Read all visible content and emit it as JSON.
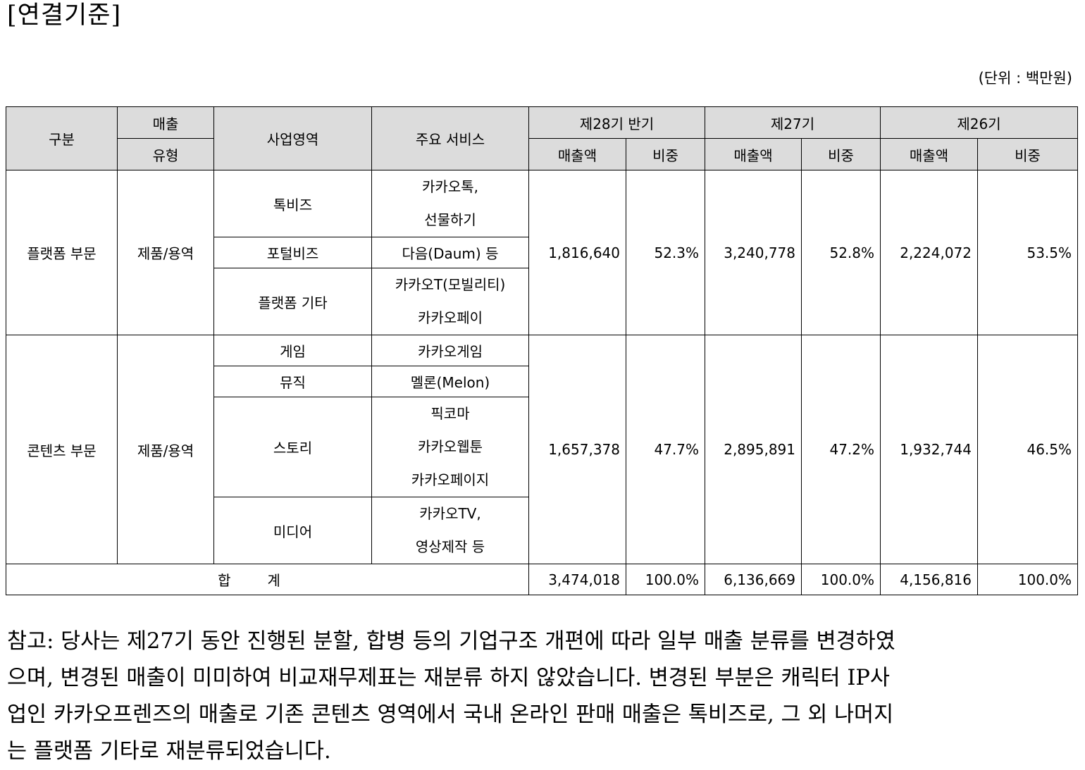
{
  "heading": "[연결기준]",
  "unit": "(단위 : 백만원)",
  "header": {
    "category": "구분",
    "sales_type_line1": "매출",
    "sales_type_line2": "유형",
    "business_area": "사업영역",
    "main_services": "주요 서비스",
    "p28": "제28기 반기",
    "p27": "제27기",
    "p26": "제26기",
    "sales": "매출액",
    "share": "비중"
  },
  "platform": {
    "category": "플랫폼 부문",
    "type": "제품/용역",
    "areas": [
      {
        "name": "톡비즈",
        "services": [
          "카카오톡,",
          "선물하기"
        ]
      },
      {
        "name": "포털비즈",
        "services": [
          "다음(Daum) 등"
        ]
      },
      {
        "name": "플랫폼 기타",
        "services": [
          "카카오T(모빌리티)",
          "카카오페이"
        ]
      }
    ],
    "p28_sales": "1,816,640",
    "p28_share": "52.3%",
    "p27_sales": "3,240,778",
    "p27_share": "52.8%",
    "p26_sales": "2,224,072",
    "p26_share": "53.5%"
  },
  "content": {
    "category": "콘텐츠 부문",
    "type": "제품/용역",
    "areas": [
      {
        "name": "게임",
        "services": [
          "카카오게임"
        ]
      },
      {
        "name": "뮤직",
        "services": [
          "멜론(Melon)"
        ]
      },
      {
        "name": "스토리",
        "services": [
          "픽코마",
          "카카오웹툰",
          "카카오페이지"
        ]
      },
      {
        "name": "미디어",
        "services": [
          "카카오TV,",
          "영상제작 등"
        ]
      }
    ],
    "p28_sales": "1,657,378",
    "p28_share": "47.7%",
    "p27_sales": "2,895,891",
    "p27_share": "47.2%",
    "p26_sales": "1,932,744",
    "p26_share": "46.5%"
  },
  "total": {
    "label": "합계",
    "p28_sales": "3,474,018",
    "p28_share": "100.0%",
    "p27_sales": "6,136,669",
    "p27_share": "100.0%",
    "p26_sales": "4,156,816",
    "p26_share": "100.0%"
  },
  "note_lines": [
    "참고: 당사는 제27기 동안 진행된 분할, 합병 등의 기업구조 개편에 따라 일부 매출 분류를 변경하였",
    "으며, 변경된 매출이 미미하여 비교재무제표는 재분류 하지 않았습니다.  변경된 부분은 캐릭터 IP사",
    "업인 카카오프렌즈의 매출로 기존 콘텐츠 영역에서 국내 온라인 판매 매출은 톡비즈로, 그 외 나머지",
    "는 플랫폼 기타로 재분류되었습니다."
  ]
}
